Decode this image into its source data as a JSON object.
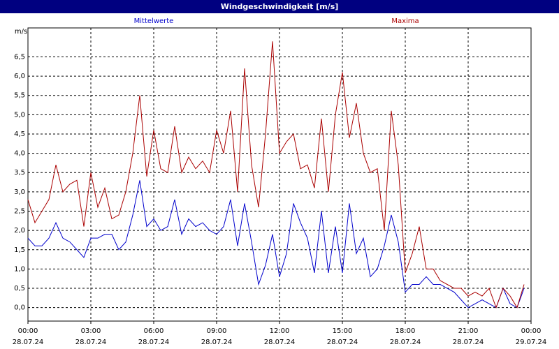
{
  "chart_data": {
    "type": "line",
    "title": "Windgeschwindigkeit [m/s]",
    "y_label": "m/s",
    "x": [
      0,
      20,
      40,
      60,
      80,
      100,
      120,
      140,
      160,
      180,
      200,
      220,
      240,
      260,
      280,
      300,
      320,
      340,
      360,
      380,
      400,
      420,
      440,
      460,
      480,
      500,
      520,
      540,
      560,
      580,
      600,
      620,
      640,
      660,
      680,
      700,
      720,
      740,
      760,
      780,
      800,
      820,
      840,
      860,
      880,
      900,
      920,
      940,
      960,
      980,
      1000,
      1020,
      1040,
      1060,
      1080,
      1100,
      1120,
      1140,
      1160,
      1180,
      1200,
      1220,
      1240,
      1260,
      1280,
      1300,
      1320,
      1340,
      1360,
      1380,
      1400,
      1420
    ],
    "series": [
      {
        "name": "Mittelwerte",
        "color": "#0000cc",
        "values": [
          1.8,
          1.6,
          1.6,
          1.8,
          2.2,
          1.8,
          1.7,
          1.5,
          1.3,
          1.8,
          1.8,
          1.9,
          1.9,
          1.5,
          1.7,
          2.4,
          3.3,
          2.1,
          2.3,
          2.0,
          2.1,
          2.8,
          1.9,
          2.3,
          2.1,
          2.2,
          2.0,
          1.9,
          2.1,
          2.8,
          1.6,
          2.7,
          1.7,
          0.6,
          1.1,
          1.9,
          0.8,
          1.4,
          2.7,
          2.2,
          1.8,
          0.9,
          2.5,
          0.9,
          2.1,
          0.9,
          2.7,
          1.4,
          1.8,
          0.8,
          1.0,
          1.6,
          2.4,
          1.7,
          0.4,
          0.6,
          0.6,
          0.8,
          0.6,
          0.6,
          0.5,
          0.4,
          0.2,
          0.0,
          0.1,
          0.2,
          0.1,
          0.0,
          0.5,
          0.1,
          0.0,
          0.5
        ]
      },
      {
        "name": "Maxima",
        "color": "#aa0000",
        "values": [
          2.8,
          2.2,
          2.5,
          2.8,
          3.7,
          3.0,
          3.2,
          3.3,
          2.1,
          3.5,
          2.6,
          3.1,
          2.3,
          2.4,
          3.0,
          4.0,
          5.5,
          3.4,
          4.6,
          3.6,
          3.5,
          4.7,
          3.5,
          3.9,
          3.6,
          3.8,
          3.5,
          4.6,
          4.0,
          5.1,
          3.0,
          6.2,
          3.7,
          2.6,
          4.5,
          6.9,
          4.0,
          4.3,
          4.5,
          3.6,
          3.7,
          3.1,
          4.9,
          3.0,
          5.0,
          6.1,
          4.4,
          5.3,
          4.0,
          3.5,
          3.6,
          2.0,
          5.1,
          3.7,
          0.9,
          1.4,
          2.1,
          1.0,
          1.0,
          0.7,
          0.6,
          0.5,
          0.5,
          0.3,
          0.4,
          0.3,
          0.5,
          0.0,
          0.5,
          0.3,
          0.0,
          0.6
        ]
      }
    ],
    "xlim": [
      0,
      1440
    ],
    "xticks": [
      {
        "value": 0,
        "label": "00:00"
      },
      {
        "value": 180,
        "label": "03:00"
      },
      {
        "value": 360,
        "label": "06:00"
      },
      {
        "value": 540,
        "label": "09:00"
      },
      {
        "value": 720,
        "label": "12:00"
      },
      {
        "value": 900,
        "label": "15:00"
      },
      {
        "value": 1080,
        "label": "18:00"
      },
      {
        "value": 1260,
        "label": "21:00"
      },
      {
        "value": 1440,
        "label": "00:00"
      }
    ],
    "xtick_dates": [
      "28.07.24",
      "28.07.24",
      "28.07.24",
      "28.07.24",
      "28.07.24",
      "28.07.24",
      "28.07.24",
      "28.07.24",
      "29.07.24"
    ],
    "ylim": [
      -0.35,
      7.25
    ],
    "yticks": [
      {
        "value": 0,
        "label": "0,0"
      },
      {
        "value": 0.5,
        "label": "0,5"
      },
      {
        "value": 1,
        "label": "1,0"
      },
      {
        "value": 1.5,
        "label": "1,5"
      },
      {
        "value": 2,
        "label": "2,0"
      },
      {
        "value": 2.5,
        "label": "2,5"
      },
      {
        "value": 3,
        "label": "3,0"
      },
      {
        "value": 3.5,
        "label": "3,5"
      },
      {
        "value": 4,
        "label": "4,0"
      },
      {
        "value": 4.5,
        "label": "4,5"
      },
      {
        "value": 5,
        "label": "5,0"
      },
      {
        "value": 5.5,
        "label": "5,5"
      },
      {
        "value": 6,
        "label": "6,0"
      },
      {
        "value": 6.5,
        "label": "6,5"
      }
    ],
    "grid": true,
    "title_bar_color": "#000080"
  }
}
